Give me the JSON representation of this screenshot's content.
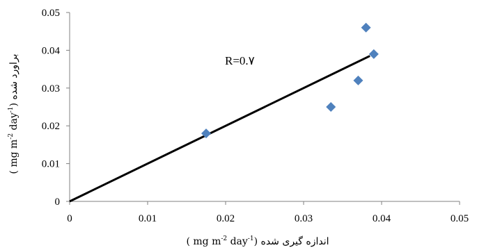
{
  "chart_data": {
    "type": "scatter",
    "title": "",
    "xlabel": {
      "text": "( mg m",
      "sup1": "-2",
      "mid": " day",
      "sup2": "-1",
      "tail": ") اندازه گیری شده"
    },
    "ylabel": {
      "text": "( mg m",
      "sup1": "-2",
      "mid": " day",
      "sup2": "-1",
      "tail": ") براورد شده"
    },
    "xlim": [
      0,
      0.05
    ],
    "ylim": [
      0,
      0.05
    ],
    "x_ticks": [
      0,
      0.01,
      0.02,
      0.03,
      0.04,
      0.05
    ],
    "x_tick_labels": [
      "0",
      "0.01",
      "0.02",
      "0.03",
      "0.04",
      "0.05"
    ],
    "y_ticks": [
      0,
      0.01,
      0.02,
      0.03,
      0.04,
      0.05
    ],
    "y_tick_labels": [
      "0",
      "0.01",
      "0.02",
      "0.03",
      "0.04",
      "0.05"
    ],
    "grid": false,
    "marker": "diamond",
    "marker_color": "#4F81BD",
    "line_color": "#000000",
    "points": [
      {
        "x": 0.0175,
        "y": 0.018
      },
      {
        "x": 0.0335,
        "y": 0.025
      },
      {
        "x": 0.037,
        "y": 0.032
      },
      {
        "x": 0.038,
        "y": 0.046
      },
      {
        "x": 0.039,
        "y": 0.039
      }
    ],
    "trendline": {
      "x": [
        0,
        0.0385
      ],
      "y": [
        0,
        0.0385
      ]
    },
    "annotation": "R=0.۷"
  }
}
